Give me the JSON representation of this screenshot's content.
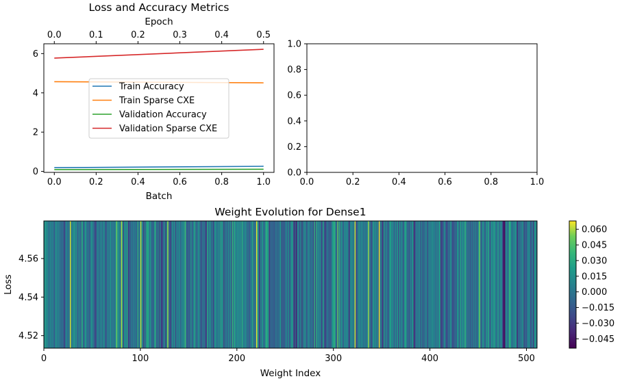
{
  "chart_data": [
    {
      "type": "line",
      "title": "Loss and Accuracy Metrics",
      "xlabel": "Batch",
      "xlabel_top": "Epoch",
      "xlim": [
        -0.05,
        1.05
      ],
      "ylim": [
        -0.05,
        6.5
      ],
      "x_ticks": [
        "0.0",
        "0.2",
        "0.4",
        "0.6",
        "0.8",
        "1.0"
      ],
      "x_top_ticks": [
        "0.0",
        "0.1",
        "0.2",
        "0.3",
        "0.4",
        "0.5"
      ],
      "y_ticks": [
        "0",
        "2",
        "4",
        "6"
      ],
      "x": [
        0,
        1
      ],
      "series": [
        {
          "name": "Train Accuracy",
          "values": [
            0.19,
            0.26
          ],
          "color": "#1f77b4"
        },
        {
          "name": "Train Sparse CXE",
          "values": [
            4.57,
            4.51
          ],
          "color": "#ff7f0e"
        },
        {
          "name": "Validation Accuracy",
          "values": [
            0.09,
            0.11
          ],
          "color": "#2ca02c"
        },
        {
          "name": "Validation Sparse CXE",
          "values": [
            5.77,
            6.22
          ],
          "color": "#d62728"
        }
      ],
      "legend_position": "center-left",
      "grid": false
    },
    {
      "type": "line",
      "title": "",
      "xlim": [
        0,
        1
      ],
      "ylim": [
        0,
        1
      ],
      "x_ticks": [
        "0.0",
        "0.2",
        "0.4",
        "0.6",
        "0.8",
        "1.0"
      ],
      "y_ticks": [
        "0.0",
        "0.2",
        "0.4",
        "0.6",
        "0.8",
        "1.0"
      ],
      "series": []
    },
    {
      "type": "heatmap",
      "title": "Weight Evolution for Dense1",
      "xlabel": "Weight Index",
      "ylabel": "Loss",
      "xlim": [
        0,
        511
      ],
      "ylim": [
        4.5135,
        4.5795
      ],
      "x_ticks": [
        "0",
        "100",
        "200",
        "300",
        "400",
        "500"
      ],
      "y_ticks": [
        "4.52",
        "4.54",
        "4.56"
      ],
      "colormap": "viridis",
      "colorbar_range": [
        -0.054,
        0.068
      ],
      "colorbar_ticks": [
        "0.060",
        "0.045",
        "0.030",
        "0.015",
        "0.000",
        "−0.015",
        "−0.030",
        "−0.045"
      ],
      "n_weights": 511,
      "highlight_weights": [
        {
          "index": 27,
          "value": 0.064
        },
        {
          "index": 75,
          "value": 0.052
        },
        {
          "index": 80,
          "value": 0.06
        },
        {
          "index": 100,
          "value": 0.062
        },
        {
          "index": 128,
          "value": 0.058
        },
        {
          "index": 220,
          "value": 0.066
        },
        {
          "index": 304,
          "value": 0.05
        },
        {
          "index": 322,
          "value": 0.064
        },
        {
          "index": 336,
          "value": 0.058
        },
        {
          "index": 347,
          "value": 0.066
        },
        {
          "index": 451,
          "value": 0.052
        },
        {
          "index": 476,
          "value": -0.05
        },
        {
          "index": 477,
          "value": -0.048
        },
        {
          "index": 497,
          "value": -0.03
        }
      ]
    }
  ]
}
